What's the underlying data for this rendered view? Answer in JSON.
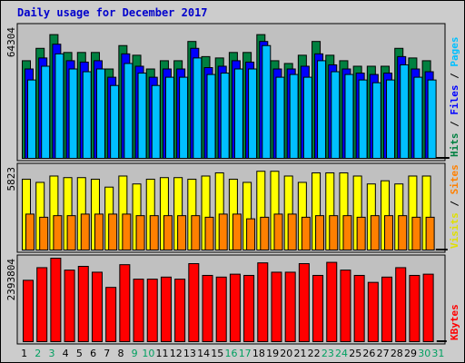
{
  "chart_data": {
    "type": "bar",
    "title": "Daily usage for December 2017",
    "categories": [
      "1",
      "2",
      "3",
      "4",
      "5",
      "6",
      "7",
      "8",
      "9",
      "10",
      "11",
      "12",
      "13",
      "14",
      "15",
      "16",
      "17",
      "18",
      "19",
      "20",
      "21",
      "22",
      "23",
      "24",
      "25",
      "26",
      "27",
      "28",
      "29",
      "30",
      "31"
    ],
    "weekend_days": [
      "2",
      "3",
      "9",
      "10",
      "16",
      "17",
      "23",
      "24",
      "30",
      "31"
    ],
    "panels": [
      {
        "name": "hits-files-pages",
        "max_label": "64304",
        "ymax": 64304,
        "side_labels": [
          {
            "text": "Hits",
            "color": "#008040"
          },
          {
            "text": " / ",
            "color": "#000000"
          },
          {
            "text": "Files",
            "color": "#0000ff"
          },
          {
            "text": " / ",
            "color": "#000000"
          },
          {
            "text": "Pages",
            "color": "#00c0ff"
          }
        ],
        "series": [
          {
            "name": "Hits",
            "color": "#008040",
            "values": [
              47712,
              53766,
              60474,
              51746,
              51746,
              51746,
              43679,
              55110,
              50401,
              43679,
              47712,
              47712,
              57126,
              49729,
              49057,
              51746,
              51746,
              60474,
              47712,
              46367,
              50401,
              57126,
              50401,
              47712,
              45023,
              45023,
              45023,
              53766,
              49057,
              47712,
              0
            ]
          },
          {
            "name": "Files",
            "color": "#0000ff",
            "values": [
              43679,
              49057,
              55781,
              47712,
              47040,
              47712,
              39645,
              51073,
              45023,
              39645,
              43679,
              43679,
              53766,
              44351,
              45023,
              47712,
              47040,
              57126,
              43679,
              43679,
              45023,
              51073,
              45695,
              43679,
              41662,
              40990,
              41662,
              49729,
              43679,
              42334,
              0
            ]
          },
          {
            "name": "Pages",
            "color": "#00c0ff",
            "values": [
              38306,
              45023,
              51073,
              43679,
              42334,
              43679,
              35614,
              46367,
              41662,
              35614,
              39645,
              39645,
              49057,
              40990,
              41662,
              43679,
              43679,
              55110,
              39645,
              40990,
              39645,
              47712,
              42334,
              40990,
              38306,
              36958,
              38306,
              45695,
              39645,
              38306,
              0
            ]
          }
        ]
      },
      {
        "name": "visits-sites",
        "max_label": "5823",
        "ymax": 5823,
        "side_labels": [
          {
            "text": "Visits",
            "color": "#e0e000"
          },
          {
            "text": " / ",
            "color": "#000000"
          },
          {
            "text": "Sites",
            "color": "#ff8000"
          }
        ],
        "series": [
          {
            "name": "Visits",
            "color": "#ffff00",
            "values": [
              4939,
              4718,
              5160,
              5049,
              5049,
              4939,
              4387,
              5160,
              4608,
              4939,
              5049,
              5049,
              4939,
              5160,
              5381,
              4939,
              4718,
              5492,
              5492,
              5160,
              4718,
              5381,
              5381,
              5381,
              5160,
              4608,
              4829,
              4608,
              5160,
              5160,
              0
            ]
          },
          {
            "name": "Sites",
            "color": "#ff8000",
            "values": [
              2506,
              2286,
              2396,
              2396,
              2506,
              2506,
              2506,
              2506,
              2396,
              2396,
              2396,
              2396,
              2396,
              2286,
              2506,
              2506,
              2176,
              2286,
              2506,
              2506,
              2286,
              2396,
              2396,
              2396,
              2286,
              2396,
              2396,
              2396,
              2286,
              2286,
              0
            ]
          }
        ]
      },
      {
        "name": "kbytes",
        "max_label": "2393804",
        "ymax": 2393804,
        "side_labels": [
          {
            "text": "KBytes",
            "color": "#ff0000"
          }
        ],
        "series": [
          {
            "name": "KBytes",
            "color": "#ff0000",
            "values": [
              1760151,
              2122219,
              2393804,
              2052113,
              2159228,
              1992101,
              1556384,
              2207521,
              1792215,
              1792215,
              1851887,
              1792215,
              2237357,
              1900180,
              1851887,
              1935447,
              1900180,
              2259788,
              1992101,
              1992101,
              2237357,
              1900180,
              2274745,
              2052113,
              1900180,
              1700479,
              1851887,
              2122219,
              1900180,
              1935447,
              0
            ]
          }
        ]
      }
    ],
    "grid": false,
    "legend": "right-vertical"
  }
}
